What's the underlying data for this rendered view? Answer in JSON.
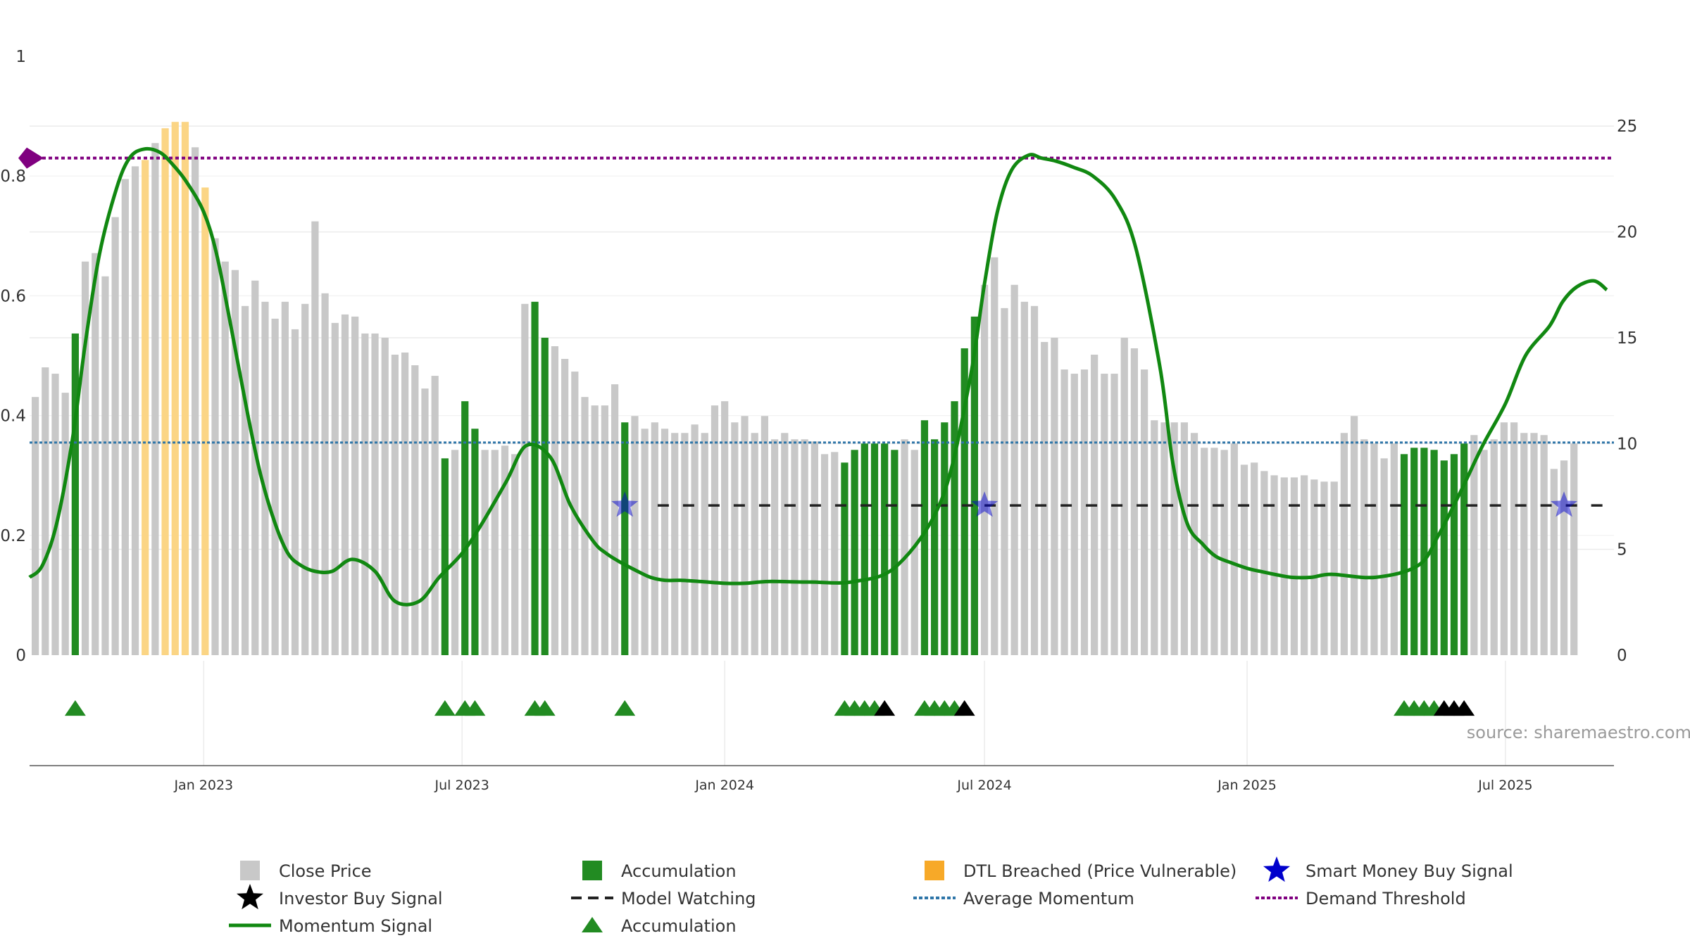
{
  "chart_data": {
    "type": "bar",
    "source_text": "source: sharemaestro.com",
    "left_axis": {
      "ticks": [
        0,
        0.2,
        0.4,
        0.6,
        0.8,
        1
      ],
      "tick_labels": [
        "0",
        "0.2",
        "0.4",
        "0.6",
        "0.8",
        "1"
      ],
      "range": [
        0,
        1
      ]
    },
    "right_axis": {
      "ticks": [
        0,
        5,
        10,
        15,
        20,
        25
      ],
      "tick_labels": [
        "0",
        "5",
        "10",
        "15",
        "20",
        "25"
      ],
      "range": [
        0,
        28.3
      ]
    },
    "x_axis": {
      "range": [
        "2022-09-01",
        "2025-09-15"
      ],
      "ticks": [
        "2023-01-01",
        "2023-07-01",
        "2024-01-01",
        "2024-07-01",
        "2025-01-01",
        "2025-07-01"
      ],
      "tick_labels": [
        "Jan 2023",
        "Jul 2023",
        "Jan 2024",
        "Jul 2024",
        "Jan 2025",
        "Jul 2025"
      ]
    },
    "grid": true,
    "legend_placement": "bottom",
    "colors": {
      "close": "#c8c8c8",
      "accumulation": "#228b22",
      "dtl": "#fbd585",
      "momentum": "#118811",
      "model_watching": "#222222",
      "average_momentum": "#2e75a8",
      "demand_threshold": "#800080",
      "smart_money": "#0000cc"
    },
    "series": [
      {
        "name": "Close Price",
        "axis": "right",
        "start_date": "2022-09-05",
        "interval_days": 7,
        "values": [
          12.2,
          13.6,
          13.3,
          12.4,
          15.2,
          18.6,
          19.0,
          17.9,
          20.7,
          22.5,
          23.1,
          23.4,
          24.2,
          24.9,
          25.2,
          25.2,
          24.0,
          22.1,
          19.7,
          18.6,
          18.2,
          16.5,
          17.7,
          16.7,
          15.9,
          16.7,
          15.4,
          16.6,
          20.5,
          17.1,
          15.7,
          16.1,
          16.0,
          15.2,
          15.2,
          15.0,
          14.2,
          14.3,
          13.7,
          12.6,
          13.2,
          9.3,
          9.7,
          12.0,
          10.7,
          9.7,
          9.7,
          9.9,
          9.5,
          16.6,
          16.7,
          15.0,
          14.6,
          14.0,
          13.4,
          12.2,
          11.8,
          11.8,
          12.8,
          11.0,
          11.3,
          10.7,
          11.0,
          10.7,
          10.5,
          10.5,
          10.9,
          10.5,
          11.8,
          12.0,
          11.0,
          11.3,
          10.5,
          11.3,
          10.2,
          10.5,
          10.2,
          10.2,
          10.1,
          9.5,
          9.6,
          9.1,
          9.7,
          10.0,
          10.0,
          10.0,
          9.7,
          10.2,
          9.7,
          11.1,
          10.2,
          11.0,
          12.0,
          14.5,
          16.0,
          17.5,
          18.8,
          16.4,
          17.5,
          16.7,
          16.5,
          14.8,
          15.0,
          13.5,
          13.3,
          13.5,
          14.2,
          13.3,
          13.3,
          15.0,
          14.5,
          13.5,
          11.1,
          11.0,
          11.0,
          11.0,
          10.5,
          9.8,
          9.8,
          9.7,
          10.0,
          9.0,
          9.1,
          8.7,
          8.5,
          8.4,
          8.4,
          8.5,
          8.3,
          8.2,
          8.2,
          10.5,
          11.3,
          10.2,
          10.0,
          9.3,
          10.0,
          9.5,
          9.8,
          9.8,
          9.7,
          9.2,
          9.5,
          10.0,
          10.4,
          9.7,
          10.2,
          11.0,
          11.0,
          10.5,
          10.5,
          10.4,
          8.8,
          9.2,
          10.0
        ]
      },
      {
        "name": "Accumulation",
        "axis": "right",
        "marker": "bar",
        "indices": [
          4,
          41,
          43,
          44,
          50,
          51,
          59,
          81,
          82,
          83,
          84,
          85,
          86,
          89,
          90,
          91,
          92,
          93,
          94,
          137,
          138,
          139,
          140,
          141,
          142,
          143
        ]
      },
      {
        "name": "DTL Breached (Price Vulnerable)",
        "axis": "right",
        "marker": "bar",
        "indices": [
          11,
          13,
          14,
          15,
          17
        ]
      },
      {
        "name": "Momentum Signal",
        "axis": "left",
        "dates": [
          "2022-09-01",
          "2022-09-10",
          "2022-09-20",
          "2022-10-01",
          "2022-10-10",
          "2022-10-20",
          "2022-11-01",
          "2022-11-10",
          "2022-11-20",
          "2022-12-01",
          "2022-12-10",
          "2022-12-20",
          "2023-01-01",
          "2023-01-10",
          "2023-01-20",
          "2023-02-01",
          "2023-02-10",
          "2023-02-20",
          "2023-03-01",
          "2023-03-10",
          "2023-03-20",
          "2023-04-01",
          "2023-04-15",
          "2023-05-01",
          "2023-05-15",
          "2023-06-01",
          "2023-06-15",
          "2023-07-01",
          "2023-07-15",
          "2023-08-01",
          "2023-08-15",
          "2023-09-01",
          "2023-09-15",
          "2023-10-01",
          "2023-10-10",
          "2023-10-20",
          "2023-11-01",
          "2023-11-10",
          "2023-11-20",
          "2023-12-01",
          "2023-12-15",
          "2024-01-01",
          "2024-01-15",
          "2024-02-01",
          "2024-03-01",
          "2024-04-01",
          "2024-05-01",
          "2024-06-01",
          "2024-06-20",
          "2024-07-01",
          "2024-07-10",
          "2024-07-20",
          "2024-08-01",
          "2024-08-10",
          "2024-08-20",
          "2024-09-01",
          "2024-09-15",
          "2024-10-01",
          "2024-10-15",
          "2024-11-01",
          "2024-11-10",
          "2024-11-20",
          "2024-12-01",
          "2024-12-10",
          "2024-12-20",
          "2025-01-01",
          "2025-01-10",
          "2025-01-20",
          "2025-02-01",
          "2025-02-15",
          "2025-03-01",
          "2025-04-01",
          "2025-05-01",
          "2025-05-15",
          "2025-06-01",
          "2025-06-15",
          "2025-07-01",
          "2025-07-15",
          "2025-08-01",
          "2025-08-10",
          "2025-08-20",
          "2025-09-01",
          "2025-09-10"
        ],
        "values": [
          0.13,
          0.15,
          0.22,
          0.36,
          0.52,
          0.67,
          0.78,
          0.83,
          0.845,
          0.84,
          0.82,
          0.79,
          0.74,
          0.67,
          0.55,
          0.4,
          0.3,
          0.22,
          0.17,
          0.15,
          0.14,
          0.14,
          0.16,
          0.14,
          0.09,
          0.09,
          0.13,
          0.17,
          0.22,
          0.29,
          0.35,
          0.33,
          0.25,
          0.19,
          0.17,
          0.155,
          0.14,
          0.13,
          0.125,
          0.125,
          0.123,
          0.12,
          0.12,
          0.123,
          0.122,
          0.123,
          0.15,
          0.26,
          0.45,
          0.62,
          0.74,
          0.81,
          0.835,
          0.83,
          0.825,
          0.815,
          0.8,
          0.76,
          0.68,
          0.48,
          0.32,
          0.22,
          0.185,
          0.165,
          0.155,
          0.145,
          0.14,
          0.135,
          0.13,
          0.13,
          0.135,
          0.13,
          0.15,
          0.2,
          0.28,
          0.35,
          0.42,
          0.5,
          0.55,
          0.59,
          0.615,
          0.625,
          0.61
        ]
      },
      {
        "name": "Model Watching",
        "axis": "left",
        "y": 0.25,
        "from_dates": [
          "2023-11-15",
          "2024-07-01",
          "2025-06-20"
        ],
        "to_dates": [
          "2024-06-30",
          "2025-06-20",
          "2025-09-15"
        ]
      },
      {
        "name": "Average Momentum",
        "axis": "left",
        "y": 0.355
      },
      {
        "name": "Demand Threshold",
        "axis": "left",
        "y": 0.83
      },
      {
        "name": "Smart Money Buy Signal",
        "axis": "left",
        "y": 0.25,
        "indices": [
          59,
          95,
          153
        ]
      },
      {
        "name": "Accumulation",
        "marker": "triangle",
        "row": "below",
        "indices": [
          4,
          41,
          43,
          44,
          50,
          51,
          59,
          81,
          82,
          83,
          84,
          89,
          90,
          91,
          92,
          137,
          138,
          139,
          140
        ]
      },
      {
        "name": "Investor Buy Signal",
        "marker": "triangle",
        "row": "below",
        "indices": [
          85,
          93,
          141,
          142,
          143
        ]
      }
    ],
    "legend": [
      "Close Price",
      "Accumulation",
      "DTL Breached (Price Vulnerable)",
      "Smart Money Buy Signal",
      "Investor Buy Signal",
      "Model Watching",
      "Average Momentum",
      "Demand Threshold",
      "Momentum Signal",
      "Accumulation"
    ]
  }
}
